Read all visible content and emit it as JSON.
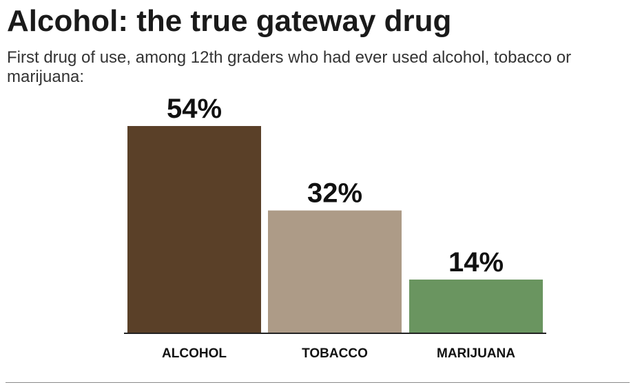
{
  "title": "Alcohol: the true gateway drug",
  "subtitle": "First drug of use, among 12th graders who had ever used alcohol, tobacco or marijuana:",
  "chart_data": {
    "type": "bar",
    "title": "Alcohol: the true gateway drug",
    "subtitle": "First drug of use, among 12th graders who had ever used alcohol, tobacco or marijuana:",
    "categories": [
      "ALCOHOL",
      "TOBACCO",
      "MARIJUANA"
    ],
    "values": [
      54,
      32,
      14
    ],
    "value_labels": [
      "54%",
      "32%",
      "14%"
    ],
    "colors": [
      "#5a4028",
      "#ad9b87",
      "#6a9560"
    ],
    "xlabel": "",
    "ylabel": "",
    "ylim": [
      0,
      54
    ],
    "grid": false,
    "legend": "none"
  }
}
